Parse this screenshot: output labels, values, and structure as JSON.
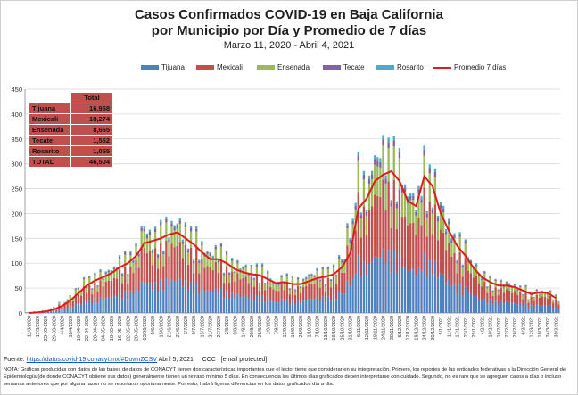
{
  "title_line1": "Casos Confirmados COVID-19 en Baja California",
  "title_line2": "por Municipio por Día y Promedio de 7 días",
  "subtitle": "Marzo 11, 2020  - Abril 4, 2021",
  "legend": [
    "Tijuana",
    "Mexicali",
    "Ensenada",
    "Tecate",
    "Rosarito",
    "Promedio 7 días"
  ],
  "colors": {
    "Tijuana": "#4f81bd",
    "Mexicali": "#c0504d",
    "Ensenada": "#9bbb59",
    "Tecate": "#8064a2",
    "Rosarito": "#4bacc6",
    "avg": "#e31a1c",
    "stats_bg": "#c0504d"
  },
  "stats_table": {
    "header": "Total",
    "rows": [
      {
        "label": "Tijuana",
        "value": "16,958"
      },
      {
        "label": "Mexicali",
        "value": "18,274"
      },
      {
        "label": "Ensenada",
        "value": "8,665"
      },
      {
        "label": "Tecate",
        "value": "1,552"
      },
      {
        "label": "Rosarito",
        "value": "1,055"
      },
      {
        "label": "TOTAL",
        "value": "46,504"
      }
    ]
  },
  "source": {
    "prefix": "Fuente:",
    "link": "https://datos.covid-19.conacyt.mx/#DownZCSV",
    "date": "Abril 5, 2021",
    "credit": "CCC",
    "email": "[email protected]"
  },
  "note": "NOTA: Gráficas producidas con datos de las bases de datos de CONACYT tienen dos características importantes que el lector tiene que considerar en su interpretación. Primero, los reportes de las entidades federativas a la Dirección General de Epidemiología (de donde CONACYT obtiene sus datos) generalmente tienen un retraso mínimo 5 días. En consecuencia los últimos días graficados deben interpretarse con cuidado. Segundo, no es raro que se agreguen casos a días o incluso semanas anteriores que por alguna razón no se reportaron oportunamente. Por esto, habrá ligeras diferencias en los datos graficados día a día.",
  "chart_data": {
    "type": "bar",
    "stacked": true,
    "ylim": [
      0,
      450
    ],
    "y_ticks": [
      0,
      50,
      100,
      150,
      200,
      250,
      300,
      350,
      400,
      450
    ],
    "grid": true,
    "legend_position": "top",
    "x_tick_labels": [
      "11/3/2020",
      "17/3/2020",
      "23-03-2020",
      "29-03-2020",
      "4/4/2020",
      "10/4/2020",
      "16-04-2020",
      "22-04-2020",
      "28-04-2020",
      "04-05-2020",
      "10-05-2020",
      "16-05-2020",
      "22-05-2020",
      "28-05-2020",
      "03/06/2020",
      "9/6/2020",
      "15/6/2020",
      "21/6/2020",
      "27/6/2020",
      "3/7/2020",
      "9/7/2020",
      "15/7/2020",
      "21/7/2020",
      "27/7/2020",
      "2/8/2020",
      "8/8/2020",
      "14/8/2020",
      "20/8/2020",
      "26/8/2020",
      "1/9/2020",
      "7/9/2020",
      "13/9/2020",
      "19/9/2020",
      "25/9/2020",
      "1/10/2020",
      "7/10/2020",
      "13/10/2020",
      "19/10/2020",
      "25/10/2020",
      "31/10/2020",
      "6/11/2020",
      "12/11/2020",
      "18/11/2020",
      "24/11/2020",
      "30/11/2020",
      "6/12/2020",
      "12/12/2020",
      "18/12/2020",
      "24/12/2020",
      "30/12/2020",
      "5/1/2021",
      "11/1/2021",
      "17/1/2021",
      "23/1/2021",
      "29/1/2021",
      "4/2/2021",
      "10/2/2021",
      "16/2/2021",
      "22/2/2021",
      "28/2/2021",
      "6/3/2021",
      "12/3/2021",
      "18/3/2021",
      "24/3/2021",
      "30/3/2021"
    ],
    "series": [
      {
        "name": "Tijuana"
      },
      {
        "name": "Mexicali"
      },
      {
        "name": "Ensenada"
      },
      {
        "name": "Tecate"
      },
      {
        "name": "Rosarito"
      },
      {
        "name": "Promedio 7 días"
      }
    ],
    "daily_total_approx": [
      2,
      3,
      5,
      10,
      18,
      30,
      45,
      60,
      65,
      72,
      80,
      95,
      100,
      118,
      155,
      140,
      150,
      158,
      165,
      150,
      140,
      120,
      110,
      115,
      100,
      90,
      85,
      80,
      80,
      70,
      55,
      65,
      60,
      58,
      70,
      75,
      75,
      80,
      100,
      155,
      260,
      230,
      280,
      300,
      285,
      270,
      220,
      210,
      270,
      240,
      195,
      160,
      130,
      120,
      90,
      70,
      60,
      55,
      55,
      50,
      45,
      35,
      40,
      38,
      30
    ],
    "avg7": [
      0,
      1,
      3,
      7,
      14,
      25,
      40,
      55,
      65,
      72,
      80,
      92,
      100,
      115,
      140,
      145,
      150,
      158,
      162,
      150,
      138,
      122,
      108,
      108,
      100,
      88,
      82,
      78,
      76,
      68,
      60,
      62,
      58,
      58,
      64,
      70,
      73,
      78,
      92,
      120,
      210,
      230,
      265,
      278,
      285,
      265,
      225,
      215,
      275,
      255,
      200,
      165,
      135,
      115,
      90,
      72,
      62,
      55,
      55,
      52,
      45,
      38,
      42,
      40,
      30
    ]
  }
}
